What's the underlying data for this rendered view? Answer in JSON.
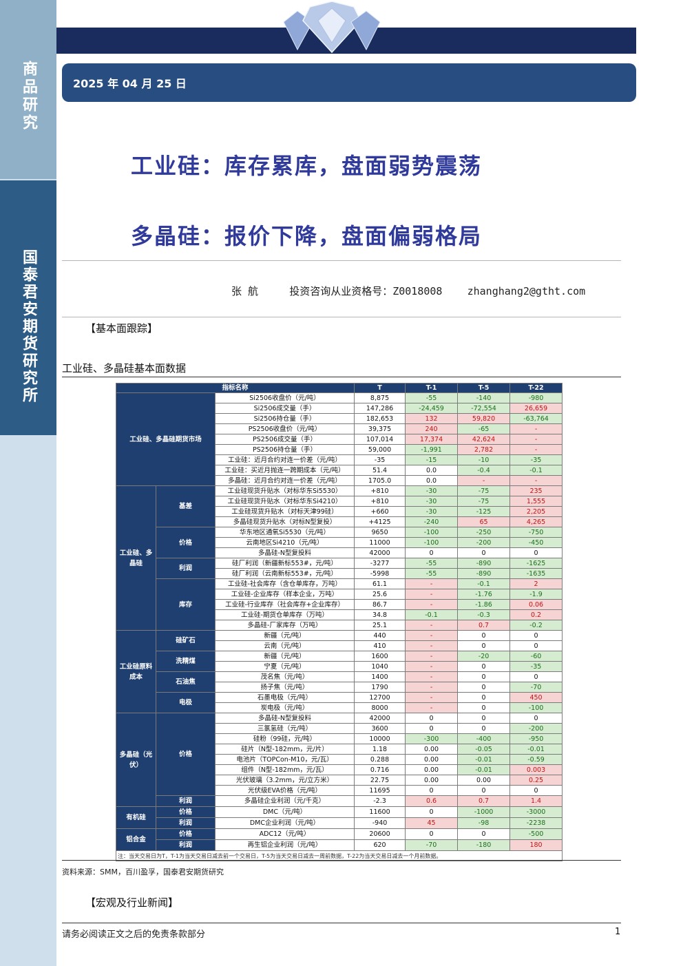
{
  "sidebar": {
    "top_label": "商品研究",
    "org_label": "国泰君安期货研究所"
  },
  "header": {
    "date": "2025 年 04 月 25 日"
  },
  "titles": {
    "line1": "工业硅：库存累库，盘面弱势震荡",
    "line2": "多晶硅：报价下降，盘面偏弱格局"
  },
  "author": {
    "name": "张    航",
    "license_label": "投资咨询从业资格号：",
    "license_no": "Z0018008",
    "email": "zhanghang2@gtht.com"
  },
  "section1": "【基本面跟踪】",
  "table_title": "工业硅、多晶硅基本面数据",
  "table": {
    "headers": [
      "指标名称",
      "T",
      "T-1",
      "T-5",
      "T-22"
    ],
    "groups": [
      {
        "label": "工业硅、多晶硅期货市场",
        "rows": [
          {
            "name": "Si2506收盘价（元/吨）",
            "t": "8,875",
            "t1": "-55",
            "t5": "-140",
            "t22": "-980"
          },
          {
            "name": "Si2506成交量（手）",
            "t": "147,286",
            "t1": "-24,459",
            "t5": "-72,554",
            "t22": "26,659"
          },
          {
            "name": "Si2506持仓量（手）",
            "t": "182,653",
            "t1": "132",
            "t5": "59,820",
            "t22": "-63,764"
          },
          {
            "name": "PS2506收盘价（元/吨）",
            "t": "39,375",
            "t1": "240",
            "t5": "-65",
            "t22": "-"
          },
          {
            "name": "PS2506成交量（手）",
            "t": "107,014",
            "t1": "17,374",
            "t5": "42,624",
            "t22": "-"
          },
          {
            "name": "PS2506持仓量（手）",
            "t": "59,000",
            "t1": "-1,991",
            "t5": "2,782",
            "t22": "-"
          },
          {
            "name": "工业硅：近月合约对连一价差（元/吨）",
            "t": "-35",
            "t1": "-15",
            "t5": "-10",
            "t22": "-35"
          },
          {
            "name": "工业硅：买近月抛连一跨期成本（元/吨）",
            "t": "51.4",
            "t1": "0.0",
            "t5": "-0.4",
            "t22": "-0.1"
          },
          {
            "name": "多晶硅：近月合约对连一价差（元/吨）",
            "t": "1705.0",
            "t1": "0.0",
            "t5": "-",
            "t22": "-"
          }
        ]
      },
      {
        "label": "工业硅、多晶硅",
        "subgroups": [
          {
            "label": "基差",
            "rows": [
              {
                "name": "工业硅现货升贴水（对标华东Si5530）",
                "t": "+810",
                "t1": "-30",
                "t5": "-75",
                "t22": "235"
              },
              {
                "name": "工业硅现货升贴水（对标华东Si4210）",
                "t": "+810",
                "t1": "-30",
                "t5": "-75",
                "t22": "1,555"
              },
              {
                "name": "工业硅现货升贴水（对标天津99硅）",
                "t": "+660",
                "t1": "-30",
                "t5": "-125",
                "t22": "2,205"
              },
              {
                "name": "多晶硅现货升贴水（对标N型复投）",
                "t": "+4125",
                "t1": "-240",
                "t5": "65",
                "t22": "4,265"
              }
            ]
          },
          {
            "label": "价格",
            "rows": [
              {
                "name": "华东地区通氧Si5530（元/吨）",
                "t": "9650",
                "t1": "-100",
                "t5": "-250",
                "t22": "-750"
              },
              {
                "name": "云南地区Si4210（元/吨）",
                "t": "11000",
                "t1": "-100",
                "t5": "-200",
                "t22": "-450"
              },
              {
                "name": "多晶硅-N型复投料",
                "t": "42000",
                "t1": "0",
                "t5": "0",
                "t22": "0"
              }
            ]
          },
          {
            "label": "利润",
            "rows": [
              {
                "name": "硅厂利润（新疆新标553#，元/吨）",
                "t": "-3277",
                "t1": "-55",
                "t5": "-890",
                "t22": "-1625"
              },
              {
                "name": "硅厂利润（云南新标553#，元/吨）",
                "t": "-5998",
                "t1": "-55",
                "t5": "-890",
                "t22": "-1635"
              }
            ]
          },
          {
            "label": "库存",
            "rows": [
              {
                "name": "工业硅-社会库存（含仓单库存，万吨）",
                "t": "61.1",
                "t1": "-",
                "t5": "-0.1",
                "t22": "2"
              },
              {
                "name": "工业硅-企业库存（样本企业，万吨）",
                "t": "25.6",
                "t1": "-",
                "t5": "-1.76",
                "t22": "-1.9"
              },
              {
                "name": "工业硅-行业库存（社会库存+企业库存）",
                "t": "86.7",
                "t1": "-",
                "t5": "-1.86",
                "t22": "0.06"
              },
              {
                "name": "工业硅-期货仓单库存（万吨）",
                "t": "34.8",
                "t1": "-0.1",
                "t5": "-0.3",
                "t22": "0.2"
              },
              {
                "name": "多晶硅-厂家库存（万吨）",
                "t": "25.1",
                "t1": "-",
                "t5": "0.7",
                "t22": "-0.2"
              }
            ]
          }
        ]
      },
      {
        "label": "工业硅原料成本",
        "subgroups": [
          {
            "label": "硅矿石",
            "rows": [
              {
                "name": "新疆（元/吨）",
                "t": "440",
                "t1": "-",
                "t5": "0",
                "t22": "0"
              },
              {
                "name": "云南（元/吨）",
                "t": "410",
                "t1": "-",
                "t5": "0",
                "t22": "0"
              }
            ]
          },
          {
            "label": "洗精煤",
            "rows": [
              {
                "name": "新疆（元/吨）",
                "t": "1600",
                "t1": "-",
                "t5": "-20",
                "t22": "-60"
              },
              {
                "name": "宁夏（元/吨）",
                "t": "1040",
                "t1": "-",
                "t5": "0",
                "t22": "-35"
              }
            ]
          },
          {
            "label": "石油焦",
            "rows": [
              {
                "name": "茂名焦（元/吨）",
                "t": "1400",
                "t1": "-",
                "t5": "0",
                "t22": "0"
              },
              {
                "name": "扬子焦（元/吨）",
                "t": "1790",
                "t1": "-",
                "t5": "0",
                "t22": "-70"
              }
            ]
          },
          {
            "label": "电极",
            "rows": [
              {
                "name": "石墨电极（元/吨）",
                "t": "12700",
                "t1": "-",
                "t5": "0",
                "t22": "450"
              },
              {
                "name": "炭电极（元/吨）",
                "t": "8000",
                "t1": "-",
                "t5": "0",
                "t22": "-100"
              }
            ]
          }
        ]
      },
      {
        "label": "多晶硅（光伏）",
        "subgroups": [
          {
            "label": "价格",
            "rows": [
              {
                "name": "多晶硅-N型复投料",
                "t": "42000",
                "t1": "0",
                "t5": "0",
                "t22": "0"
              },
              {
                "name": "三氯氢硅（元/吨）",
                "t": "3600",
                "t1": "0",
                "t5": "0",
                "t22": "-200"
              },
              {
                "name": "硅粉（99硅，元/吨）",
                "t": "10000",
                "t1": "-300",
                "t5": "-400",
                "t22": "-950"
              },
              {
                "name": "硅片（N型-182mm，元/片）",
                "t": "1.18",
                "t1": "0.00",
                "t5": "-0.05",
                "t22": "-0.01"
              },
              {
                "name": "电池片（TOPCon-M10，元/瓦）",
                "t": "0.288",
                "t1": "0.00",
                "t5": "-0.01",
                "t22": "-0.59"
              },
              {
                "name": "组件（N型-182mm，元/瓦）",
                "t": "0.716",
                "t1": "0.00",
                "t5": "-0.01",
                "t22": "0.003"
              },
              {
                "name": "光伏玻璃（3.2mm，元/立方米）",
                "t": "22.75",
                "t1": "0.00",
                "t5": "0.00",
                "t22": "0.25"
              },
              {
                "name": "光伏级EVA价格（元/吨）",
                "t": "11695",
                "t1": "0",
                "t5": "0",
                "t22": "0"
              }
            ]
          },
          {
            "label": "利润",
            "rows": [
              {
                "name": "多晶硅企业利润（元/千克）",
                "t": "-2.3",
                "t1": "0.6",
                "t5": "0.7",
                "t22": "1.4"
              }
            ]
          }
        ]
      },
      {
        "label": "有机硅",
        "subgroups": [
          {
            "label": "价格",
            "rows": [
              {
                "name": "DMC（元/吨）",
                "t": "11600",
                "t1": "0",
                "t5": "-1000",
                "t22": "-3000"
              }
            ]
          },
          {
            "label": "利润",
            "rows": [
              {
                "name": "DMC企业利润（元/吨）",
                "t": "-940",
                "t1": "45",
                "t5": "-98",
                "t22": "-2238"
              }
            ]
          }
        ]
      },
      {
        "label": "铝合金",
        "subgroups": [
          {
            "label": "价格",
            "rows": [
              {
                "name": "ADC12（元/吨）",
                "t": "20600",
                "t1": "0",
                "t5": "0",
                "t22": "-500"
              }
            ]
          },
          {
            "label": "利润",
            "rows": [
              {
                "name": "再生铝企业利润（元/吨）",
                "t": "620",
                "t1": "-70",
                "t5": "-180",
                "t22": "180"
              }
            ]
          }
        ]
      }
    ],
    "note": "注：当天交易日为T，T-1为当天交易日减去前一个交易日，T-5为当天交易日减去一周前数据，T-22为当天交易日减去一个月前数据。"
  },
  "source": "资料来源：SMM，百川盈孚，国泰君安期货研究",
  "section2": "【宏观及行业新闻】",
  "footer": {
    "disclaimer": "请务必阅读正文之后的免责条款部分",
    "page": "1"
  },
  "colors": {
    "navy": "#1a2c5e",
    "header_blue": "#284d80",
    "title_blue": "#2f3a9a",
    "up_bg": "#f6d4d3",
    "up_text": "#c01616",
    "down_bg": "#d6ecd0",
    "down_text": "#1d6d1d"
  }
}
